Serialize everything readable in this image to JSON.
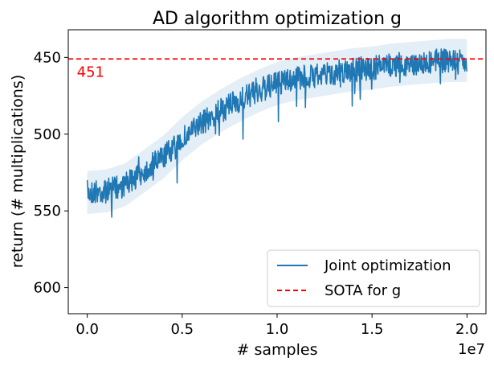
{
  "chart_data": {
    "type": "line",
    "title": "AD algorithm optimization g",
    "xlabel": "# samples",
    "ylabel": "return (# multiplications)",
    "x_offset_label": "1e7",
    "xlim": [
      -0.1,
      2.1
    ],
    "ylim": [
      617,
      432
    ],
    "y_inverted": true,
    "xticks": [
      0.0,
      0.5,
      1.0,
      1.5,
      2.0
    ],
    "xtick_labels": [
      "0.0",
      "0.5",
      "1.0",
      "1.5",
      "2.0"
    ],
    "yticks": [
      450,
      500,
      550,
      600
    ],
    "ytick_labels": [
      "450",
      "500",
      "550",
      "600"
    ],
    "grid": false,
    "legend_position": "bottom-right",
    "series": [
      {
        "name": "Joint optimization",
        "color": "#1f77b4",
        "style": "solid",
        "trend_x": [
          0.0,
          0.1,
          0.2,
          0.3,
          0.4,
          0.5,
          0.6,
          0.7,
          0.8,
          0.9,
          1.0,
          1.1,
          1.2,
          1.3,
          1.4,
          1.5,
          1.6,
          1.7,
          1.8,
          1.9,
          2.0
        ],
        "trend_y": [
          538,
          537,
          533,
          524,
          515,
          503,
          493,
          485,
          478,
          472,
          467,
          464,
          462,
          460,
          458,
          457,
          455,
          454,
          453,
          452,
          452
        ],
        "noise_amplitude": 8,
        "band_half_width": 14
      },
      {
        "name": "SOTA for g",
        "color": "#ff0000",
        "style": "dashed",
        "y": 451
      }
    ],
    "annotations": [
      {
        "text": "451",
        "color": "#ff0000",
        "x": 0.0,
        "y": 451
      }
    ]
  }
}
